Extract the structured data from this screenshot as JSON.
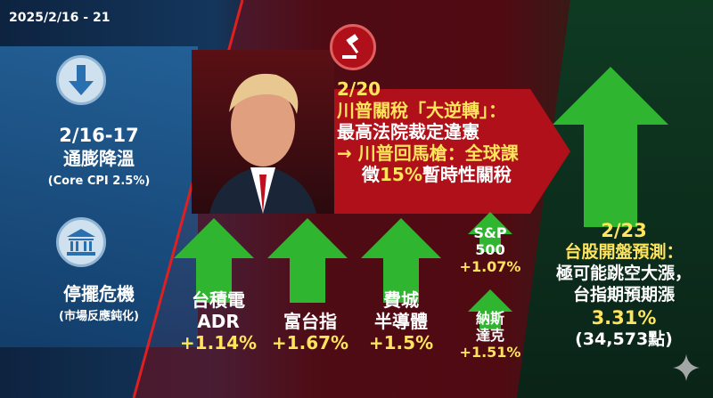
{
  "date_range": "2025/2/16 - 21",
  "left": {
    "event1": {
      "icon": "down-arrow-icon",
      "date": "2/16-17",
      "title": "通膨降溫",
      "sub": "(Core CPI 2.5%)"
    },
    "event2": {
      "icon": "government-building-icon",
      "title": "停擺危機",
      "sub": "(市場反應鈍化)"
    }
  },
  "center": {
    "icon": "gavel-icon",
    "date": "2/20",
    "line1": "川普關稅「大逆轉」：",
    "line2": "最高法院裁定違憲",
    "line3": "→ 川普回馬槍：全球課",
    "line4_a": "徵",
    "line4_b": "15%",
    "line4_c": "暫時性關稅"
  },
  "markets": [
    {
      "name1": "台積電",
      "name2": "ADR",
      "change": "+1.14%"
    },
    {
      "name1": "",
      "name2": "富台指",
      "change": "+1.67%"
    },
    {
      "name1": "費城",
      "name2": "半導體",
      "change": "+1.5%"
    },
    {
      "name1": "S&P",
      "name2": "500",
      "change": "+1.07%"
    },
    {
      "name1": "納斯",
      "name2": "達克",
      "change": "+1.51%"
    }
  ],
  "right": {
    "date": "2/23",
    "title": "台股開盤預測：",
    "line1": "極可能跳空大漲，",
    "line2": "台指期預期漲",
    "pct": "3.31%",
    "points": "(34,573點)"
  },
  "colors": {
    "yellow": "#ffe45c",
    "green": "#2fb52f",
    "red": "#b0101a",
    "blue": "#1f5f98"
  }
}
